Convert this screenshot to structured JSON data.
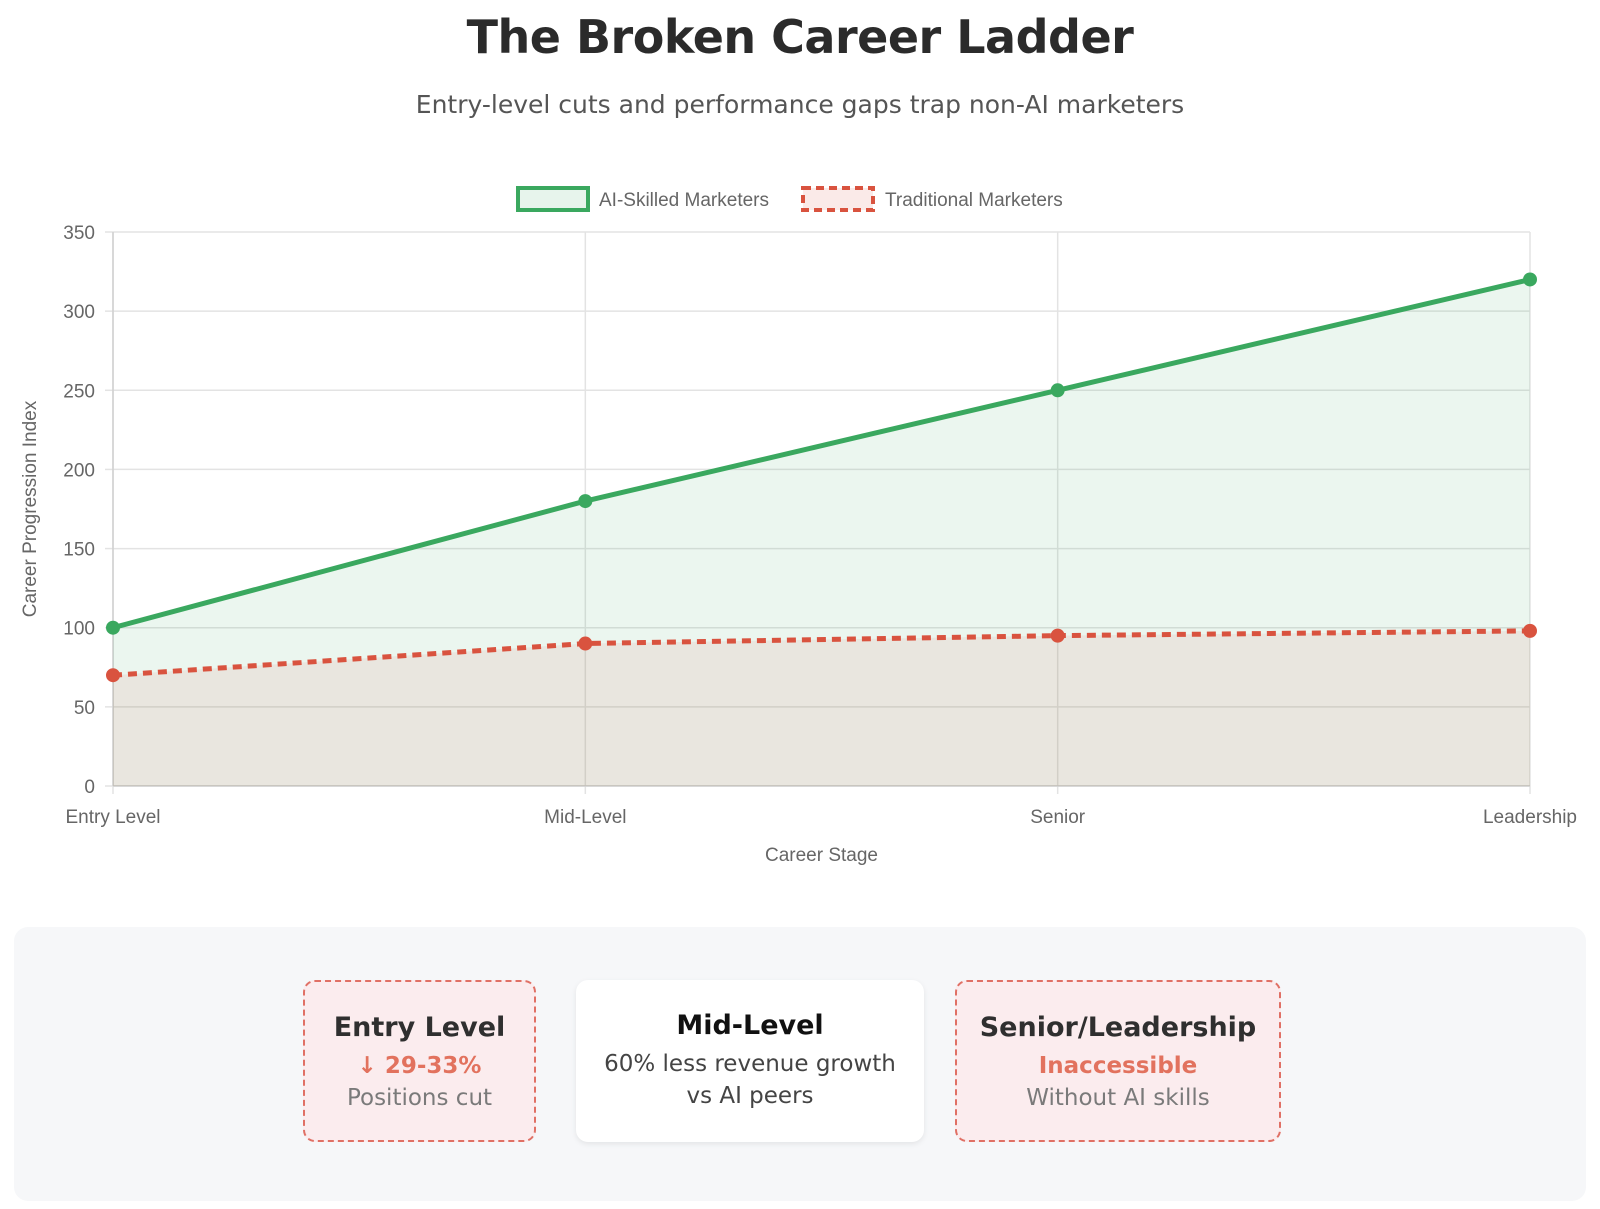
{
  "header": {
    "title": "The Broken Career Ladder",
    "subtitle": "Entry-level cuts and performance gaps trap non-AI marketers"
  },
  "chart_data": {
    "type": "line",
    "categories": [
      "Entry Level",
      "Mid-Level",
      "Senior",
      "Leadership"
    ],
    "series": [
      {
        "name": "AI-Skilled Marketers",
        "values": [
          100,
          180,
          250,
          320
        ],
        "color": "#3aa85f",
        "dashed": false,
        "fill": true
      },
      {
        "name": "Traditional Marketers",
        "values": [
          70,
          90,
          95,
          98
        ],
        "color": "#d9533f",
        "dashed": true,
        "fill": true
      }
    ],
    "xlabel": "Career Stage",
    "ylabel": "Career Progression Index",
    "ylim": [
      0,
      350
    ],
    "yticks": [
      0,
      50,
      100,
      150,
      200,
      250,
      300,
      350
    ],
    "grid": true,
    "legend": "top-center"
  },
  "cards": [
    {
      "title": "Entry Level",
      "highlight": "↓ 29-33%",
      "desc": "Positions cut",
      "style": "warn"
    },
    {
      "title": "Mid-Level",
      "desc_line1": "60% less revenue growth",
      "desc_line2": "vs AI peers",
      "style": "neutral"
    },
    {
      "title": "Senior/Leadership",
      "highlight": "Inaccessible",
      "desc": "Without AI skills",
      "style": "warn"
    }
  ]
}
